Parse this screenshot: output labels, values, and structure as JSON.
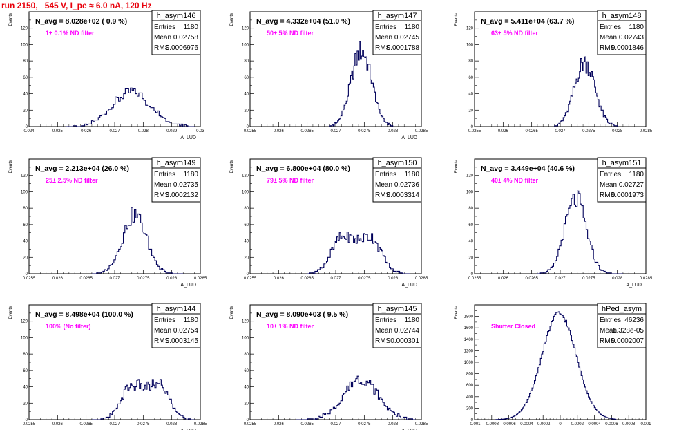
{
  "header": {
    "run_title": "run 2150,   545 V, I_pe ≈ 6.0 nA, 120 Hz"
  },
  "colors": {
    "histogram": "#00005a",
    "title": "#e8000b",
    "annotation": "#ff00ff"
  },
  "chart_data": [
    {
      "type": "histogram",
      "name": "h_asym146",
      "ylabel": "Events",
      "xlabel": "A_LUD",
      "nlabel": "N_avg = 8.028e+02 ( 0.9 %)",
      "note": "1± 0.1% ND filter",
      "stats": {
        "entries": "1180",
        "mean": "0.02758",
        "rms": "0.0006976"
      },
      "xlim": [
        0.024,
        0.03
      ],
      "ylim": [
        0,
        140
      ],
      "xticks": [
        "0.024",
        "0.025",
        "0.026",
        "0.027",
        "0.028",
        "0.029",
        "0.03"
      ],
      "yticks": [
        "0",
        "20",
        "40",
        "60",
        "80",
        "100",
        "120"
      ],
      "shape": {
        "mu": 0.02758,
        "sigma": 0.00068,
        "peak": 42,
        "bins": 76,
        "lo": 0.0253,
        "hi": 0.0298
      }
    },
    {
      "type": "histogram",
      "name": "h_asym147",
      "ylabel": "Events",
      "xlabel": "A_LUD",
      "nlabel": "N_avg = 4.332e+04 (51.0 %)",
      "note": "50± 5% ND filter",
      "stats": {
        "entries": "1180",
        "mean": "0.02745",
        "rms": "0.0001788"
      },
      "xlim": [
        0.0255,
        0.0285
      ],
      "ylim": [
        0,
        140
      ],
      "xticks": [
        "0.0255",
        "0.026",
        "0.0265",
        "0.027",
        "0.0275",
        "0.028",
        "0.0285"
      ],
      "yticks": [
        "0",
        "20",
        "40",
        "60",
        "80",
        "100",
        "120"
      ],
      "shape": {
        "mu": 0.02745,
        "sigma": 0.00018,
        "peak": 92,
        "bins": 58,
        "lo": 0.0269,
        "hi": 0.028
      }
    },
    {
      "type": "histogram",
      "name": "h_asym148",
      "ylabel": "Events",
      "xlabel": "",
      "nlabel": "N_avg = 5.411e+04 (63.7 %)",
      "note": "63± 5% ND filter",
      "stats": {
        "entries": "1180",
        "mean": "0.02743",
        "rms": "0.0001846"
      },
      "xlim": [
        0.0255,
        0.0285
      ],
      "ylim": [
        0,
        140
      ],
      "xticks": [
        "0.0255",
        "0.026",
        "0.0265",
        "0.027",
        "0.0275",
        "0.028",
        "0.0285"
      ],
      "yticks": [
        "0",
        "20",
        "40",
        "60",
        "80",
        "100",
        "120"
      ],
      "shape": {
        "mu": 0.02743,
        "sigma": 0.00018,
        "peak": 78,
        "bins": 58,
        "lo": 0.0269,
        "hi": 0.028
      }
    },
    {
      "type": "histogram",
      "name": "h_asym149",
      "ylabel": "Events",
      "xlabel": "A_LUD",
      "nlabel": "N_avg = 2.213e+04 (26.0 %)",
      "note": "25± 2.5% ND filter",
      "stats": {
        "entries": "1180",
        "mean": "0.02735",
        "rms": "0.0002132"
      },
      "xlim": [
        0.0255,
        0.0285
      ],
      "ylim": [
        0,
        140
      ],
      "xticks": [
        "0.0255",
        "0.026",
        "0.0265",
        "0.027",
        "0.0275",
        "0.028",
        "0.0285"
      ],
      "yticks": [
        "0",
        "20",
        "40",
        "60",
        "80",
        "100",
        "120"
      ],
      "shape": {
        "mu": 0.02735,
        "sigma": 0.00021,
        "peak": 72,
        "bins": 58,
        "lo": 0.0266,
        "hi": 0.0282
      }
    },
    {
      "type": "histogram",
      "name": "h_asym150",
      "ylabel": "Events",
      "xlabel": "A_LUD",
      "nlabel": "N_avg = 6.800e+04 (80.0 %)",
      "note": "79± 5% ND filter",
      "stats": {
        "entries": "1180",
        "mean": "0.02736",
        "rms": "0.0003314"
      },
      "xlim": [
        0.0255,
        0.0285
      ],
      "ylim": [
        0,
        140
      ],
      "xticks": [
        "0.0255",
        "0.026",
        "0.0265",
        "0.027",
        "0.0275",
        "0.028",
        "0.0285"
      ],
      "yticks": [
        "0",
        "20",
        "40",
        "60",
        "80",
        "100",
        "120"
      ],
      "shape": {
        "mu": 0.02736,
        "sigma": 0.00032,
        "peak": 45,
        "bins": 80,
        "lo": 0.0265,
        "hi": 0.0283,
        "double": true
      }
    },
    {
      "type": "histogram",
      "name": "h_asym151",
      "ylabel": "Events",
      "xlabel": "A_LUD",
      "nlabel": "N_avg = 3.449e+04 (40.6 %)",
      "note": "40± 4% ND filter",
      "stats": {
        "entries": "1180",
        "mean": "0.02727",
        "rms": "0.0001973"
      },
      "xlim": [
        0.0255,
        0.0285
      ],
      "ylim": [
        0,
        140
      ],
      "xticks": [
        "0.0255",
        "0.026",
        "0.0265",
        "0.027",
        "0.0275",
        "0.028",
        "0.0285"
      ],
      "yticks": [
        "0",
        "20",
        "40",
        "60",
        "80",
        "100",
        "120"
      ],
      "shape": {
        "mu": 0.02727,
        "sigma": 0.00019,
        "peak": 90,
        "bins": 58,
        "lo": 0.0266,
        "hi": 0.0281
      }
    },
    {
      "type": "histogram",
      "name": "h_asym144",
      "ylabel": "Events",
      "xlabel": "A_LUD",
      "nlabel": "N_avg = 8.498e+04 (100.0 %)",
      "note": "100% (No filter)",
      "stats": {
        "entries": "1180",
        "mean": "0.02754",
        "rms": "0.0003145"
      },
      "xlim": [
        0.0255,
        0.0285
      ],
      "ylim": [
        0,
        140
      ],
      "xticks": [
        "0.0255",
        "0.026",
        "0.0265",
        "0.027",
        "0.0275",
        "0.028",
        "0.0285"
      ],
      "yticks": [
        "0",
        "20",
        "40",
        "60",
        "80",
        "100",
        "120"
      ],
      "shape": {
        "mu": 0.02754,
        "sigma": 0.00031,
        "peak": 42,
        "bins": 80,
        "lo": 0.0266,
        "hi": 0.0284,
        "double": true
      }
    },
    {
      "type": "histogram",
      "name": "h_asym145",
      "ylabel": "Events",
      "xlabel": "A_LUD",
      "nlabel": "N_avg = 8.090e+03 ( 9.5 %)",
      "note": "10± 1% ND filter",
      "stats": {
        "entries": "1180",
        "mean": "0.02744",
        "rms": "0.000301"
      },
      "xlim": [
        0.0255,
        0.0285
      ],
      "ylim": [
        0,
        140
      ],
      "xticks": [
        "0.0255",
        "0.026",
        "0.0265",
        "0.027",
        "0.0275",
        "0.028",
        "0.0285"
      ],
      "yticks": [
        "0",
        "20",
        "40",
        "60",
        "80",
        "100",
        "120"
      ],
      "shape": {
        "mu": 0.02744,
        "sigma": 0.0003,
        "peak": 50,
        "bins": 80,
        "lo": 0.0263,
        "hi": 0.0284
      }
    },
    {
      "type": "histogram",
      "name": "hPed_asym",
      "ylabel": "Events",
      "xlabel": "",
      "nlabel": "",
      "note": "Shutter Closed",
      "stats": {
        "entries": "46236",
        "mean": "-1.328e-05",
        "rms": "0.0002007"
      },
      "xlim": [
        -0.001,
        0.001
      ],
      "ylim": [
        0,
        2000
      ],
      "xticks": [
        "-0.001",
        "-0.0008",
        "-0.0006",
        "-0.0004",
        "-0.0002",
        "0",
        "0.0002",
        "0.0004",
        "0.0006",
        "0.0008",
        "0.001"
      ],
      "yticks": [
        "0",
        "200",
        "400",
        "600",
        "800",
        "1000",
        "1200",
        "1400",
        "1600",
        "1800"
      ],
      "shape": {
        "mu": -1.33e-05,
        "sigma": 0.0002,
        "peak": 1850,
        "bins": 100,
        "lo": -0.00075,
        "hi": 0.00065
      }
    }
  ]
}
